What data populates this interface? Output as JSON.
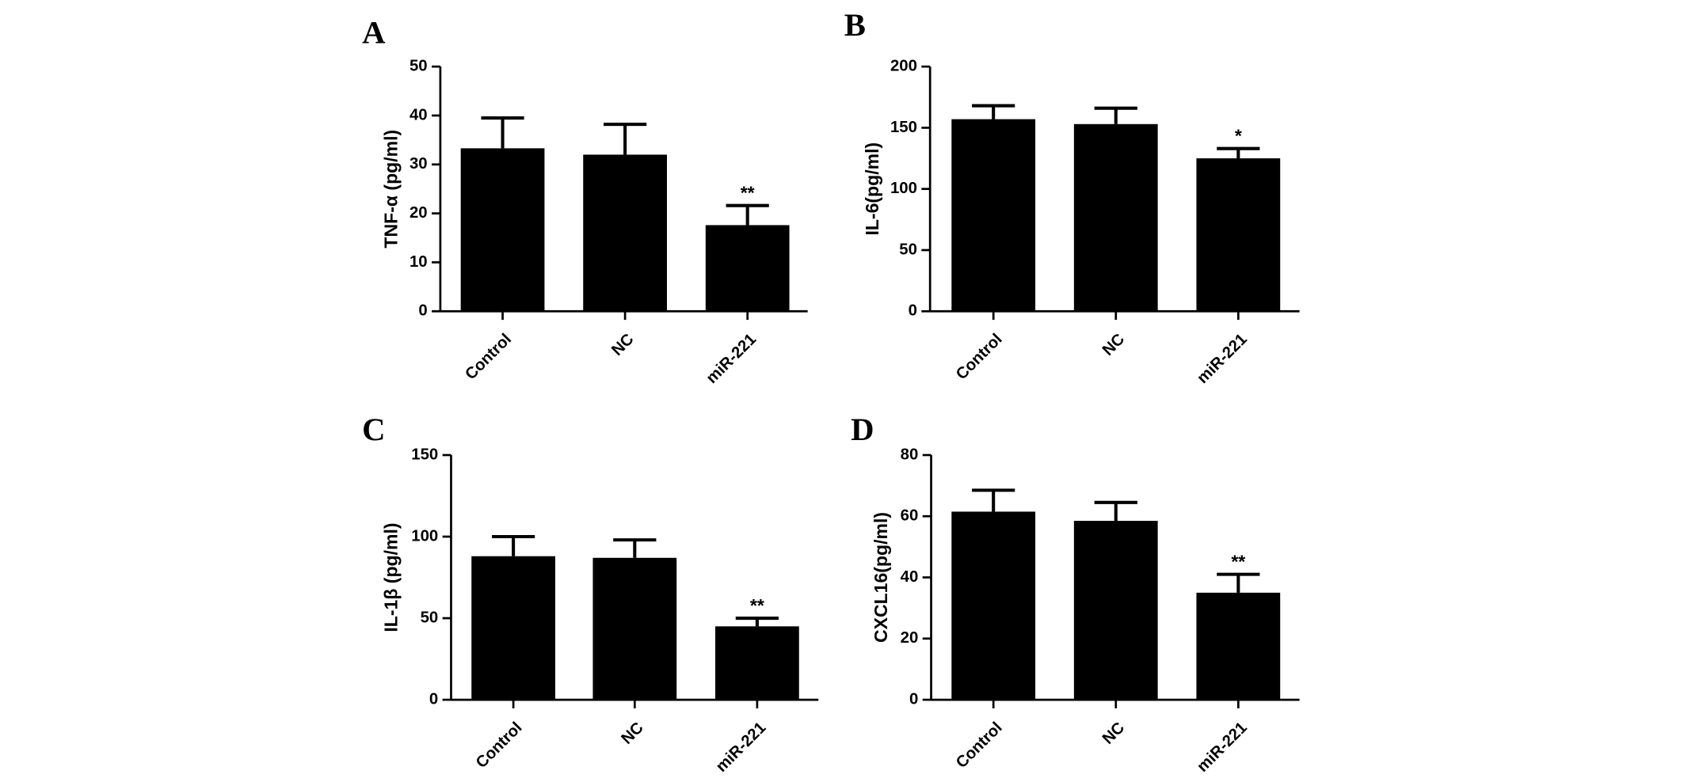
{
  "chart_data": [
    {
      "type": "bar",
      "panel": "A",
      "y_label": "TNF-α (pg/ml)",
      "categories": [
        "Control",
        "NC",
        "miR-221"
      ],
      "values": [
        33.3,
        32,
        17.6
      ],
      "errors": [
        6.2,
        6.2,
        4
      ],
      "value_annotations": [
        null,
        null,
        "**"
      ],
      "color": "#000000",
      "ylim": [
        0,
        50
      ],
      "yticks": [
        0,
        10,
        20,
        30,
        40,
        50
      ]
    },
    {
      "type": "bar",
      "panel": "B",
      "y_label": "IL-6(pg/ml)",
      "categories": [
        "Control",
        "NC",
        "miR-221"
      ],
      "values": [
        157,
        153,
        125
      ],
      "errors": [
        11,
        13,
        8
      ],
      "value_annotations": [
        null,
        null,
        "*"
      ],
      "color": "#000000",
      "ylim": [
        0,
        200
      ],
      "yticks": [
        0,
        50,
        100,
        150,
        200
      ]
    },
    {
      "type": "bar",
      "panel": "C",
      "y_label": "IL-1β (pg/ml)",
      "categories": [
        "Control",
        "NC",
        "miR-221"
      ],
      "values": [
        88,
        87,
        45
      ],
      "errors": [
        12,
        11,
        5
      ],
      "value_annotations": [
        null,
        null,
        "**"
      ],
      "color": "#000000",
      "ylim": [
        0,
        150
      ],
      "yticks": [
        0,
        50,
        100,
        150
      ]
    },
    {
      "type": "bar",
      "panel": "D",
      "y_label": "CXCL16(pg/ml)",
      "categories": [
        "Control",
        "NC",
        "miR-221"
      ],
      "values": [
        61.5,
        58.5,
        35
      ],
      "errors": [
        7,
        6,
        6
      ],
      "value_annotations": [
        null,
        null,
        "**"
      ],
      "color": "#000000",
      "ylim": [
        0,
        80
      ],
      "yticks": [
        0,
        20,
        40,
        60,
        80
      ]
    }
  ]
}
